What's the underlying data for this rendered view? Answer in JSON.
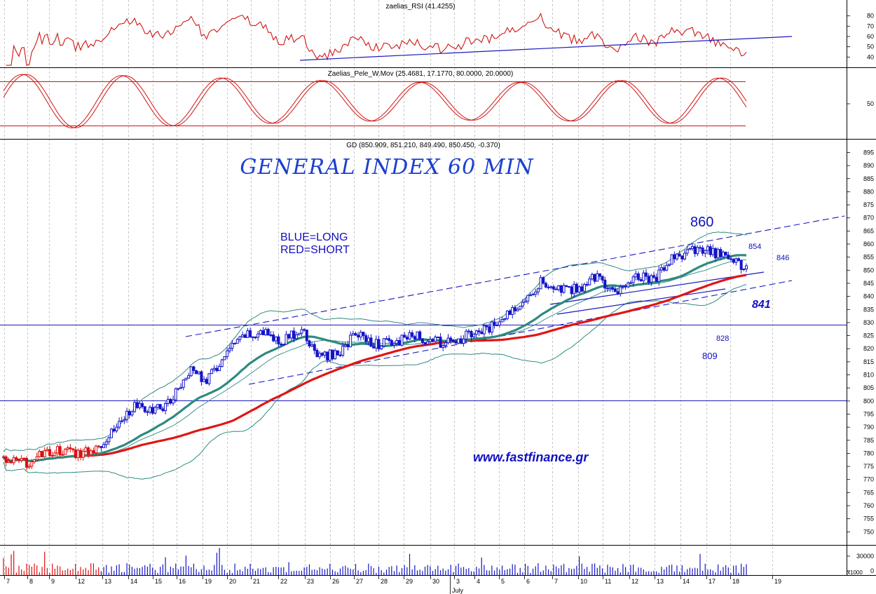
{
  "panels": {
    "rsi_title": "zaelias_RSI (41.4255)",
    "pele_title": "Zaelias_Pele_W.Mov (25.4681, 17.1770, 80.0000, 20.0000)",
    "price_title": "GD (850.909, 851.210, 849.490, 850.450, -0.370)",
    "volume_scale": "x1000"
  },
  "annotations": {
    "main_title": "GENERAL INDEX 60 MIN",
    "legend_long": "BLUE=LONG",
    "legend_short": "RED=SHORT",
    "url": "www.fastfinance.gr",
    "level_860": "860",
    "level_854": "854",
    "level_846": "846",
    "level_841": "841",
    "level_828": "828",
    "level_809": "809"
  },
  "colors": {
    "bull": "#1515c8",
    "bear": "#dd1010",
    "ema_short": "#2e8a80",
    "ema_long": "#e01515",
    "trendline": "#1a1ac0",
    "rsi_line": "#d01515",
    "grid": "#a0a0a0"
  },
  "chart_data": [
    {
      "type": "line",
      "name": "RSI",
      "title": "zaelias_RSI (41.4255)",
      "ylim": [
        30,
        90
      ],
      "yticks": [
        40,
        50,
        60,
        70,
        80
      ],
      "grid": true,
      "last_value": 41.4255
    },
    {
      "type": "line",
      "name": "Pele W.Mov",
      "title": "Zaelias_Pele_W.Mov (25.4681, 17.1770, 80.0000, 20.0000)",
      "yticks": [
        50
      ],
      "levels": [
        80,
        20
      ],
      "grid": true
    },
    {
      "type": "candlestick",
      "name": "GD",
      "title": "GD (850.909, 851.210, 849.490, 850.450, -0.370)",
      "last_bar": {
        "open": 850.909,
        "high": 851.21,
        "low": 849.49,
        "close": 850.45,
        "change": -0.37
      },
      "ylim": [
        745,
        897
      ],
      "yticks": [
        750,
        755,
        760,
        765,
        770,
        775,
        780,
        785,
        790,
        795,
        800,
        805,
        810,
        815,
        820,
        825,
        830,
        835,
        840,
        845,
        850,
        855,
        860,
        865,
        870,
        875,
        880,
        885,
        890,
        895
      ],
      "grid": true,
      "x_tick_labels": [
        "7",
        "8",
        "9",
        "12",
        "13",
        "14",
        "15",
        "16",
        "19",
        "20",
        "21",
        "22",
        "23",
        "26",
        "27",
        "28",
        "29",
        "30",
        "3",
        "4",
        "5",
        "6",
        "7",
        "10",
        "11",
        "12",
        "13",
        "14",
        "17",
        "18",
        "19"
      ],
      "month_label": "July",
      "close_path": [
        [
          0,
          778
        ],
        [
          1,
          776
        ],
        [
          2,
          779
        ],
        [
          3,
          781
        ],
        [
          4,
          780
        ],
        [
          5,
          782
        ],
        [
          6,
          790
        ],
        [
          7,
          798
        ],
        [
          8,
          796
        ],
        [
          9,
          800
        ],
        [
          10,
          812
        ],
        [
          11,
          808
        ],
        [
          12,
          818
        ],
        [
          13,
          825
        ],
        [
          14,
          826
        ],
        [
          15,
          823
        ],
        [
          16,
          827
        ],
        [
          17,
          817
        ],
        [
          18,
          818
        ],
        [
          19,
          826
        ],
        [
          20,
          822
        ],
        [
          21,
          822
        ],
        [
          22,
          825
        ],
        [
          23,
          823
        ],
        [
          24,
          822
        ],
        [
          25,
          825
        ],
        [
          26,
          827
        ],
        [
          27,
          832
        ],
        [
          28,
          839
        ],
        [
          29,
          846
        ],
        [
          30,
          842
        ],
        [
          31,
          843
        ],
        [
          32,
          848
        ],
        [
          33,
          840
        ],
        [
          34,
          849
        ],
        [
          35,
          846
        ],
        [
          36,
          854
        ],
        [
          37,
          857
        ],
        [
          38,
          857
        ],
        [
          39,
          855
        ],
        [
          40,
          851
        ]
      ],
      "horizontal_levels": [
        829,
        801
      ],
      "levels_annotated": [
        860,
        854,
        846,
        841,
        828,
        809
      ]
    },
    {
      "type": "bar",
      "name": "Volume",
      "yticks": [
        30000,
        0
      ],
      "ytick_labels": [
        "30000",
        "0"
      ]
    }
  ]
}
